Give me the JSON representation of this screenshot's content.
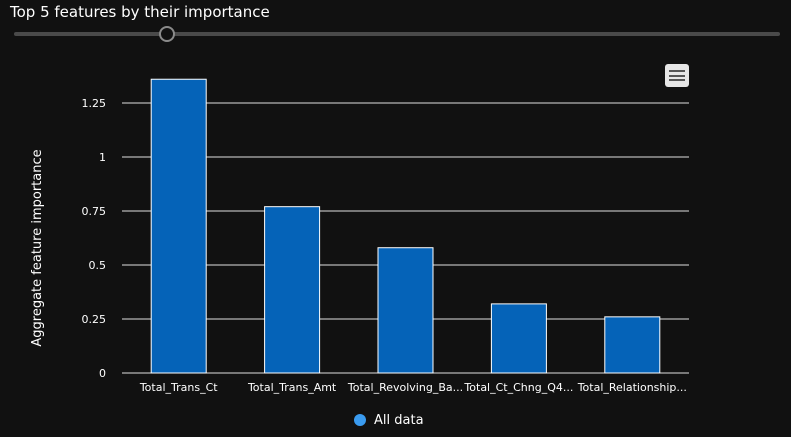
{
  "header": {
    "title": "Top 5 features by their importance"
  },
  "slider": {
    "value": 5,
    "min": 1,
    "max": 21
  },
  "colors": {
    "background": "#111111",
    "bar": "#0563b8",
    "gridline": "#e0e0e0",
    "legend_dot": "#3a9bf0"
  },
  "icons": {
    "menu": "hamburger-menu-icon"
  },
  "chart_data": {
    "type": "bar",
    "title": "",
    "xlabel": "",
    "ylabel": "Aggregate feature importance",
    "categories": [
      "Total_Trans_Ct",
      "Total_Trans_Amt",
      "Total_Revolving_Ba...",
      "Total_Ct_Chng_Q4...",
      "Total_Relationship..."
    ],
    "series": [
      {
        "name": "All data",
        "values": [
          1.36,
          0.77,
          0.58,
          0.32,
          0.26
        ]
      }
    ],
    "ylim": [
      0,
      1.25
    ],
    "yticks": [
      {
        "value": 0,
        "label": "0"
      },
      {
        "value": 0.25,
        "label": "0.25"
      },
      {
        "value": 0.5,
        "label": "0.5"
      },
      {
        "value": 0.75,
        "label": "0.75"
      },
      {
        "value": 1,
        "label": "1"
      },
      {
        "value": 1.25,
        "label": "1.25"
      }
    ],
    "grid": true,
    "legend_position": "bottom-center"
  }
}
